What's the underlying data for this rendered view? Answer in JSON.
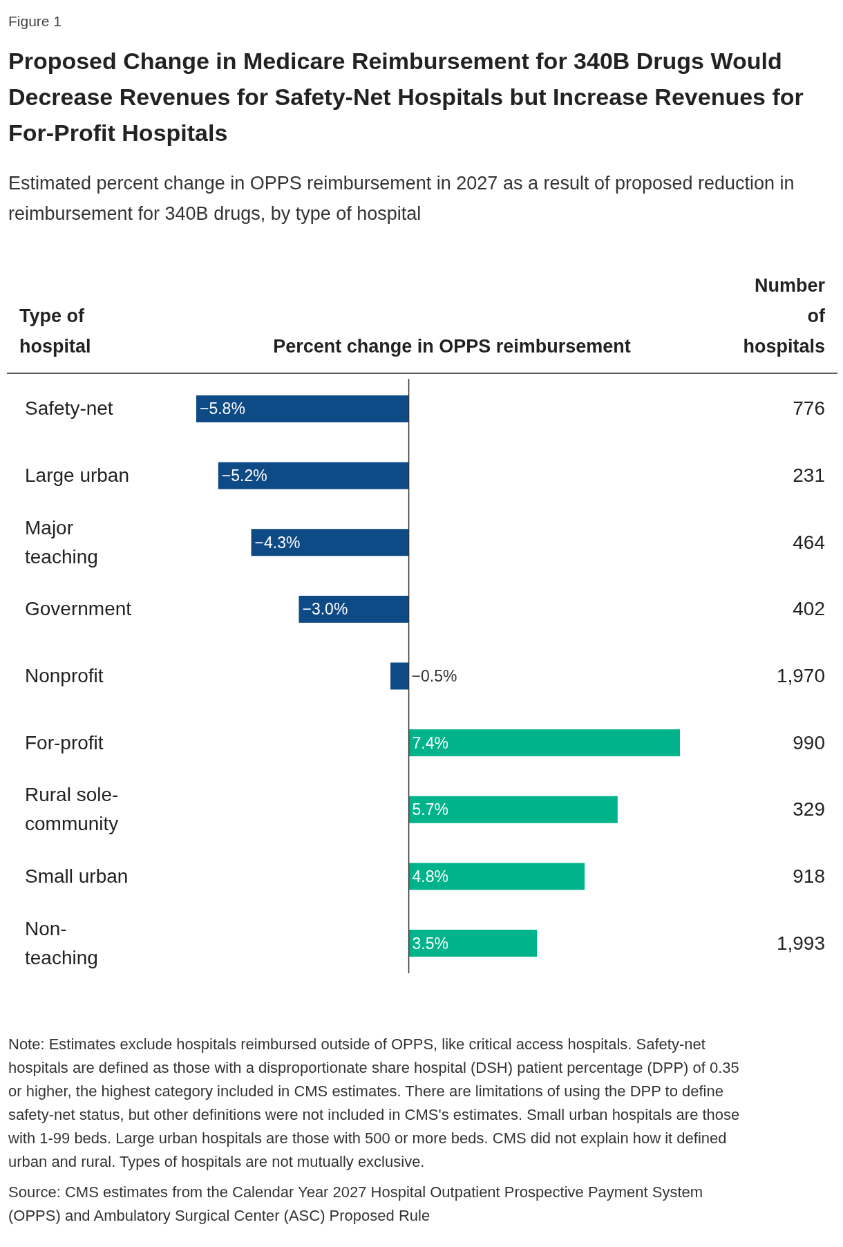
{
  "chart_data": {
    "type": "bar",
    "orientation": "horizontal",
    "title": "Proposed Change in Medicare Reimbursement for 340B Drugs Would Decrease Revenues for Safety-Net Hospitals but Increase Revenues for For-Profit Hospitals",
    "subtitle": "Estimated percent change in OPPS reimbursement in 2027 as a result of proposed reduction in reimbursement for 340B drugs, by type of hospital",
    "ylabel": "Type of hospital",
    "xlabel": "Percent change in OPPS reimbursement",
    "categories": [
      "Safety-net",
      "Large urban",
      "Major teaching",
      "Government",
      "Nonprofit",
      "For-profit",
      "Rural sole-community",
      "Small urban",
      "Non-teaching"
    ],
    "values": [
      -5.8,
      -5.2,
      -4.3,
      -3.0,
      -0.5,
      7.4,
      5.7,
      4.8,
      3.5
    ],
    "colors": [
      "#0d4a86",
      "#0d4a86",
      "#0d4a86",
      "#0d4a86",
      "#0d4a86",
      "#00b38a",
      "#00b38a",
      "#00b38a",
      "#00b38a"
    ],
    "value_labels": [
      "−5.8%",
      "−5.2%",
      "−4.3%",
      "−3.0%",
      "−0.5%",
      "7.4%",
      "5.7%",
      "4.8%",
      "3.5%"
    ],
    "xlim": [
      -5.8,
      7.4
    ],
    "annotations": [
      "Figure 1",
      "Number of hospitals",
      "776",
      "231",
      "464",
      "402",
      "1,970",
      "990",
      "329",
      "918",
      "1,993",
      "Note: Estimates exclude hospitals reimbursed outside of OPPS, like critical access hospitals. Safety-net hospitals are defined as those with a disproportionate share hospital (DSH) patient percentage (DPP) of 0.35 or higher, the highest category included in CMS estimates. There are limitations of using the DPP to define safety-net status, but other definitions were not included in CMS's estimates. Small urban hospitals are those with 1-99 beds. Large urban hospitals are those with 500 or more beds. CMS did not explain how it defined urban and rural. Types of hospitals are not mutually exclusive.",
      "Source: CMS estimates from the Calendar Year 2027 Hospital Outpatient Prospective Payment System (OPPS) and Ambulatory Surgical Center (ASC) Proposed Rule"
    ]
  }
}
